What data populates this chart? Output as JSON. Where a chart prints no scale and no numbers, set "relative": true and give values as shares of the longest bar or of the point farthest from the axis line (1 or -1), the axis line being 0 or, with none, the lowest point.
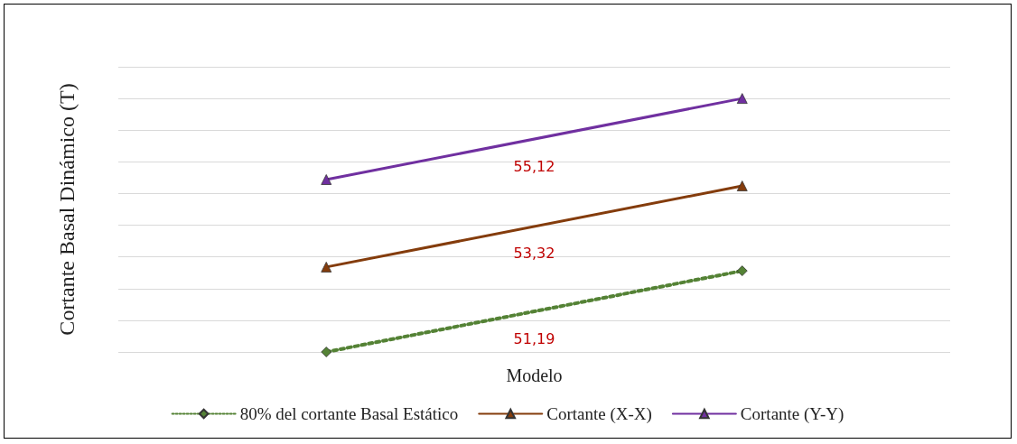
{
  "chart_data": {
    "type": "line",
    "relative": true,
    "xlabel": "Modelo",
    "ylabel": "Cortante Basal Dinámico (T)",
    "categories": [
      null,
      null
    ],
    "series": [
      {
        "name": "80% del cortante Basal Estático",
        "color": "#548235",
        "values": [
          0,
          0.32
        ],
        "marker": "diamond",
        "line_style": "dotted"
      },
      {
        "name": "Cortante (X-X)",
        "color": "#843c0c",
        "values": [
          0.335,
          0.655
        ],
        "marker": "triangle",
        "line_style": "solid"
      },
      {
        "name": "Cortante (Y-Y)",
        "color": "#7030a0",
        "values": [
          0.68,
          1
        ],
        "marker": "triangle",
        "line_style": "solid"
      }
    ],
    "annotations": [
      "51,19",
      "53,32",
      "55,12"
    ],
    "grid": true,
    "legend": "bottom"
  }
}
